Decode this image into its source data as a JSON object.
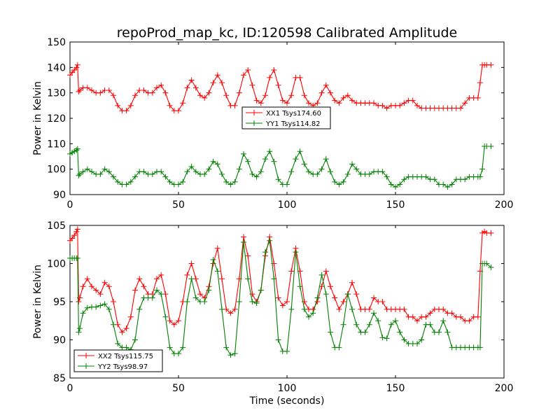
{
  "title": "repoProd_map_kc, ID:120598 Calibrated Amplitude",
  "colors": {
    "red": "#ff0000",
    "green": "#008000"
  },
  "chart_data": [
    {
      "type": "line",
      "xlabel": "",
      "ylabel": "Power in Kelvin",
      "xlim": [
        0,
        200
      ],
      "ylim": [
        90,
        150
      ],
      "xticks": [
        "0",
        "50",
        "100",
        "150",
        "200"
      ],
      "yticks": [
        "90",
        "100",
        "110",
        "120",
        "130",
        "140",
        "150"
      ],
      "grid": false,
      "legend_position": "center",
      "series": [
        {
          "name": "XX1 Tsys174.60",
          "color": "#ff0000",
          "x": [
            0,
            1,
            2,
            3,
            3.5,
            4,
            4.5,
            6,
            8,
            10,
            12,
            14,
            16,
            18,
            20,
            22,
            24,
            26,
            28,
            30,
            32,
            34,
            36,
            38,
            40,
            42,
            44,
            46,
            48,
            50,
            52,
            54,
            56,
            58,
            60,
            62,
            64,
            66,
            68,
            70,
            72,
            74,
            76,
            78,
            80,
            82,
            84,
            86,
            88,
            90,
            92,
            94,
            96,
            98,
            100,
            102,
            104,
            106,
            108,
            110,
            112,
            114,
            116,
            118,
            120,
            122,
            124,
            126,
            128,
            130,
            132,
            134,
            136,
            138,
            140,
            142,
            144,
            146,
            148,
            150,
            152,
            154,
            156,
            158,
            160,
            162,
            164,
            166,
            168,
            170,
            172,
            174,
            176,
            178,
            180,
            182,
            184,
            186,
            188,
            189,
            190,
            191,
            192,
            194
          ],
          "y": [
            137,
            138,
            139,
            140,
            141,
            130.5,
            131,
            132,
            132,
            131,
            130,
            130,
            131,
            131,
            129,
            125,
            123,
            123,
            125,
            129,
            131,
            131,
            130,
            130,
            132,
            133,
            130,
            125,
            123,
            123,
            126,
            132,
            135,
            132,
            129,
            128,
            130,
            134,
            137,
            134,
            129,
            125,
            125,
            130,
            137,
            139,
            133,
            127,
            126,
            129,
            136,
            139,
            133,
            127,
            126,
            129,
            136,
            136,
            129,
            126,
            125,
            126,
            130,
            133,
            130,
            127,
            126,
            128,
            129,
            127,
            126,
            126,
            126,
            126,
            126,
            125,
            125,
            124,
            125,
            125,
            125,
            126,
            127,
            127,
            125,
            124,
            124,
            124,
            124,
            124,
            124,
            124,
            124,
            124,
            124,
            126,
            128,
            128,
            128,
            134,
            141,
            141,
            141,
            141
          ]
        },
        {
          "name": "YY1 Tsys114.82",
          "color": "#008000",
          "x": [
            0,
            1,
            2,
            3,
            3.5,
            4,
            4.5,
            6,
            8,
            10,
            12,
            14,
            16,
            18,
            20,
            22,
            24,
            26,
            28,
            30,
            32,
            34,
            36,
            38,
            40,
            42,
            44,
            46,
            48,
            50,
            52,
            54,
            56,
            58,
            60,
            62,
            64,
            66,
            68,
            70,
            72,
            74,
            76,
            78,
            80,
            82,
            84,
            86,
            88,
            90,
            92,
            94,
            96,
            98,
            100,
            102,
            104,
            106,
            108,
            110,
            112,
            114,
            116,
            118,
            120,
            122,
            124,
            126,
            128,
            130,
            132,
            134,
            136,
            138,
            140,
            142,
            144,
            146,
            148,
            150,
            152,
            154,
            156,
            158,
            160,
            162,
            164,
            166,
            168,
            170,
            172,
            174,
            176,
            178,
            180,
            182,
            184,
            186,
            188,
            189,
            190,
            191,
            192,
            194
          ],
          "y": [
            106,
            106.5,
            107,
            107.5,
            108,
            97.5,
            98,
            99,
            100,
            99,
            98,
            98,
            100,
            99,
            97,
            95,
            94,
            94,
            95,
            97,
            99,
            99,
            98,
            98,
            99,
            99,
            97,
            95,
            94,
            94,
            95,
            99,
            101,
            99,
            98,
            98,
            100,
            103,
            102,
            98,
            95,
            94,
            95,
            100,
            106,
            103,
            98,
            97,
            99,
            104,
            107,
            103,
            96,
            94,
            94,
            99,
            104,
            107,
            102,
            99,
            98,
            98,
            100,
            104,
            99,
            95,
            94,
            95,
            98,
            102,
            100,
            98,
            98,
            98,
            99,
            99,
            99,
            97,
            94,
            93,
            94,
            96,
            97,
            97,
            97,
            97,
            97,
            96,
            96,
            94,
            94,
            93,
            94,
            96,
            96,
            96,
            97,
            97,
            97,
            97,
            100,
            109,
            109,
            109
          ]
        }
      ]
    },
    {
      "type": "line",
      "xlabel": "Time (seconds)",
      "ylabel": "Power in Kelvin",
      "xlim": [
        0,
        200
      ],
      "ylim": [
        85,
        105
      ],
      "xticks": [
        "0",
        "50",
        "100",
        "150",
        "200"
      ],
      "yticks": [
        "85",
        "90",
        "95",
        "100",
        "105"
      ],
      "grid": false,
      "legend_position": "lower-left",
      "series": [
        {
          "name": "XX2 Tsys115.75",
          "color": "#ff0000",
          "x": [
            0,
            1,
            2,
            3,
            3.5,
            4,
            4.5,
            6,
            8,
            10,
            12,
            14,
            16,
            18,
            20,
            22,
            24,
            26,
            28,
            30,
            32,
            34,
            36,
            38,
            40,
            42,
            44,
            46,
            48,
            50,
            52,
            54,
            56,
            58,
            60,
            62,
            64,
            66,
            68,
            70,
            72,
            74,
            76,
            78,
            80,
            82,
            84,
            86,
            88,
            90,
            92,
            94,
            96,
            98,
            100,
            102,
            104,
            106,
            108,
            110,
            112,
            114,
            116,
            118,
            120,
            122,
            124,
            126,
            128,
            130,
            132,
            134,
            136,
            138,
            140,
            142,
            144,
            146,
            148,
            150,
            152,
            154,
            156,
            158,
            160,
            162,
            164,
            166,
            168,
            170,
            172,
            174,
            176,
            178,
            180,
            182,
            184,
            186,
            188,
            189,
            190,
            191,
            192,
            194
          ],
          "y": [
            103,
            103.3,
            103.7,
            104.2,
            104.5,
            95,
            95.5,
            97,
            98,
            97,
            96.5,
            96,
            97.5,
            97,
            95,
            92,
            91,
            91.5,
            93,
            96.5,
            98,
            97,
            96,
            96,
            98,
            98.5,
            96,
            92.5,
            92,
            92.5,
            95,
            98.5,
            100,
            98,
            96,
            95.5,
            97,
            100,
            102,
            98,
            94,
            93.5,
            94,
            98,
            103.5,
            101,
            96,
            95,
            96.5,
            101,
            103.5,
            100,
            95.5,
            94.5,
            95,
            99,
            102,
            99,
            95,
            94,
            94,
            95,
            97,
            99,
            97,
            95.5,
            94,
            95,
            96,
            97.5,
            96,
            94,
            94,
            94,
            95.5,
            95,
            95,
            94,
            94,
            94,
            94,
            94,
            93,
            93,
            92.5,
            93,
            93,
            93.5,
            94,
            94,
            94,
            93.5,
            93.5,
            93,
            93,
            92.5,
            92.5,
            93,
            93,
            99,
            104,
            104.2,
            104,
            104
          ]
        },
        {
          "name": "YY2 Tsys98.97",
          "color": "#008000",
          "x": [
            0,
            1,
            2,
            3,
            3.5,
            4,
            4.5,
            6,
            8,
            10,
            12,
            14,
            16,
            18,
            20,
            22,
            24,
            26,
            28,
            30,
            32,
            34,
            36,
            38,
            40,
            42,
            44,
            46,
            48,
            50,
            52,
            54,
            56,
            58,
            60,
            62,
            64,
            66,
            68,
            70,
            72,
            74,
            76,
            78,
            80,
            82,
            84,
            86,
            88,
            90,
            92,
            94,
            96,
            98,
            100,
            102,
            104,
            106,
            108,
            110,
            112,
            114,
            116,
            118,
            120,
            122,
            124,
            126,
            128,
            130,
            132,
            134,
            136,
            138,
            140,
            142,
            144,
            146,
            148,
            150,
            152,
            154,
            156,
            158,
            160,
            162,
            164,
            166,
            168,
            170,
            172,
            174,
            176,
            178,
            180,
            182,
            184,
            186,
            188,
            189,
            190,
            191,
            192,
            194
          ],
          "y": [
            100.7,
            100.7,
            100.7,
            100.7,
            100.7,
            91,
            91.5,
            93.5,
            94.2,
            94.3,
            94.3,
            94.5,
            94.7,
            94,
            92,
            89.5,
            89,
            89,
            88.7,
            90,
            94,
            95.5,
            95.5,
            95.5,
            96.5,
            96,
            93,
            89,
            88.2,
            88.2,
            89,
            95,
            98,
            95.5,
            95,
            95,
            96.5,
            100.5,
            99,
            94,
            89,
            88,
            88.2,
            95,
            102.8,
            98,
            95,
            94.8,
            96.5,
            101.5,
            103,
            98,
            90,
            88.5,
            88.5,
            94,
            101.5,
            97,
            94,
            93,
            93.5,
            95.5,
            98.5,
            96,
            91,
            89,
            89,
            92,
            96,
            94,
            92,
            91,
            91,
            92,
            93.5,
            92.5,
            90.3,
            90.2,
            92,
            92.5,
            91,
            90,
            89.5,
            89.5,
            89.5,
            90,
            92,
            92,
            91,
            91,
            92.5,
            91,
            89,
            89,
            89,
            89,
            89,
            89,
            89,
            89,
            100,
            100,
            100,
            99.5
          ]
        }
      ]
    }
  ]
}
